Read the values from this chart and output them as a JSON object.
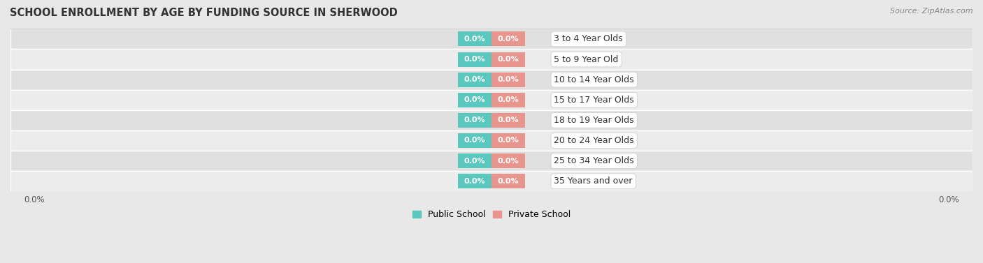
{
  "title": "SCHOOL ENROLLMENT BY AGE BY FUNDING SOURCE IN SHERWOOD",
  "source": "Source: ZipAtlas.com",
  "categories": [
    "3 to 4 Year Olds",
    "5 to 9 Year Old",
    "10 to 14 Year Olds",
    "15 to 17 Year Olds",
    "18 to 19 Year Olds",
    "20 to 24 Year Olds",
    "25 to 34 Year Olds",
    "35 Years and over"
  ],
  "public_values": [
    0.0,
    0.0,
    0.0,
    0.0,
    0.0,
    0.0,
    0.0,
    0.0
  ],
  "private_values": [
    0.0,
    0.0,
    0.0,
    0.0,
    0.0,
    0.0,
    0.0,
    0.0
  ],
  "public_color": "#5bc8c0",
  "private_color": "#e8958e",
  "bg_color": "#e8e8e8",
  "row_even_color": "#e0e0e0",
  "row_odd_color": "#ececec",
  "legend_public": "Public School",
  "legend_private": "Private School",
  "title_fontsize": 10.5,
  "source_fontsize": 8,
  "label_fontsize": 8,
  "category_fontsize": 9,
  "value_label": "0.0%",
  "xleft_tick_label": "0.0%",
  "xright_tick_label": "0.0%"
}
